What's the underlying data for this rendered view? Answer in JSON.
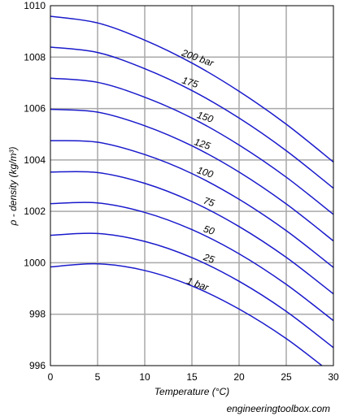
{
  "chart_data": {
    "type": "line",
    "title": "",
    "xlabel": "Temperature (°C)",
    "ylabel": "ρ - density (kg/m³)",
    "xlim": [
      0,
      30
    ],
    "ylim": [
      996,
      1010
    ],
    "xticks": [
      "0",
      "5",
      "10",
      "15",
      "20",
      "25",
      "30"
    ],
    "yticks": [
      "996",
      "998",
      "1000",
      "1002",
      "1004",
      "1006",
      "1008",
      "1010"
    ],
    "grid": true,
    "legend": "inline labels on curves",
    "line_color": "#1a1acc",
    "series": [
      {
        "name": "1 bar",
        "x": [
          0,
          5,
          10,
          15,
          20,
          25,
          30
        ],
        "y": [
          999.84,
          999.96,
          999.7,
          999.1,
          998.2,
          997.05,
          995.65
        ]
      },
      {
        "name": "25",
        "x": [
          0,
          5,
          10,
          15,
          20,
          25,
          30
        ],
        "y": [
          1001.07,
          1001.14,
          1000.83,
          1000.2,
          999.28,
          998.11,
          996.7
        ]
      },
      {
        "name": "50",
        "x": [
          0,
          5,
          10,
          15,
          20,
          25,
          30
        ],
        "y": [
          1002.3,
          1002.33,
          1001.96,
          1001.29,
          1000.35,
          999.16,
          997.75
        ]
      },
      {
        "name": "75",
        "x": [
          0,
          5,
          10,
          15,
          20,
          25,
          30
        ],
        "y": [
          1003.53,
          1003.51,
          1003.09,
          1002.38,
          1001.41,
          1000.21,
          998.79
        ]
      },
      {
        "name": "100",
        "x": [
          0,
          5,
          10,
          15,
          20,
          25,
          30
        ],
        "y": [
          1004.75,
          1004.69,
          1004.21,
          1003.47,
          1002.47,
          1001.25,
          999.82
        ]
      },
      {
        "name": "125",
        "x": [
          0,
          5,
          10,
          15,
          20,
          25,
          30
        ],
        "y": [
          1005.97,
          1005.86,
          1005.33,
          1004.55,
          1003.53,
          1002.29,
          1000.85
        ]
      },
      {
        "name": "150",
        "x": [
          0,
          5,
          10,
          15,
          20,
          25,
          30
        ],
        "y": [
          1007.18,
          1007.02,
          1006.44,
          1005.63,
          1004.58,
          1003.33,
          1001.88
        ]
      },
      {
        "name": "175",
        "x": [
          0,
          5,
          10,
          15,
          20,
          25,
          30
        ],
        "y": [
          1008.39,
          1008.18,
          1007.55,
          1006.7,
          1005.63,
          1004.36,
          1002.9
        ]
      },
      {
        "name": "200 bar",
        "x": [
          0,
          5,
          10,
          15,
          20,
          25,
          30
        ],
        "y": [
          1009.59,
          1009.33,
          1008.66,
          1007.77,
          1006.67,
          1005.39,
          1003.92
        ]
      }
    ],
    "label_positions": [
      {
        "name": "1 bar",
        "x": 15.5,
        "y": 999.05,
        "angle": 20
      },
      {
        "name": "25",
        "x": 16.7,
        "y": 1000.05,
        "angle": 18
      },
      {
        "name": "50",
        "x": 16.7,
        "y": 1001.15,
        "angle": 18
      },
      {
        "name": "75",
        "x": 16.7,
        "y": 1002.25,
        "angle": 18
      },
      {
        "name": "100",
        "x": 16.3,
        "y": 1003.4,
        "angle": 18
      },
      {
        "name": "125",
        "x": 16.0,
        "y": 1004.5,
        "angle": 18
      },
      {
        "name": "150",
        "x": 16.3,
        "y": 1005.55,
        "angle": 18
      },
      {
        "name": "175",
        "x": 14.7,
        "y": 1006.9,
        "angle": 18
      },
      {
        "name": "200 bar",
        "x": 15.5,
        "y": 1007.85,
        "angle": 20
      }
    ]
  },
  "source": "engineeringtoolbox.com"
}
